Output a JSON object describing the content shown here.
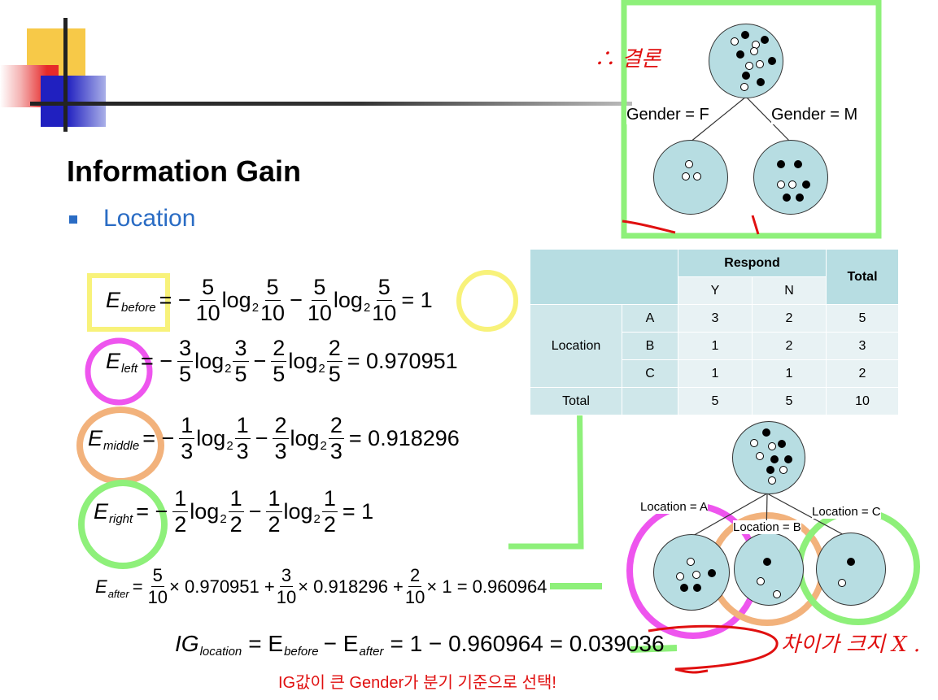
{
  "slide": {
    "title": "Information Gain",
    "bullet": "Location"
  },
  "equations": {
    "e_before": {
      "lhs": "E",
      "sub": "before",
      "a": "5",
      "b": "10",
      "c": "5",
      "d": "10",
      "e": "5",
      "f": "10",
      "g": "5",
      "h": "10",
      "result": "= 1"
    },
    "e_left": {
      "lhs": "E",
      "sub": "left",
      "a": "3",
      "b": "5",
      "c": "3",
      "d": "5",
      "e": "2",
      "f": "5",
      "g": "2",
      "h": "5",
      "result": "= 0.970951"
    },
    "e_middle": {
      "lhs": "E",
      "sub": "middle",
      "a": "1",
      "b": "3",
      "c": "1",
      "d": "3",
      "e": "2",
      "f": "3",
      "g": "2",
      "h": "3",
      "result": "= 0.918296"
    },
    "e_right": {
      "lhs": "E",
      "sub": "right",
      "a": "1",
      "b": "2",
      "c": "1",
      "d": "2",
      "e": "1",
      "f": "2",
      "g": "1",
      "h": "2",
      "result": "= 1"
    },
    "log": "log",
    "log_base": "2",
    "e_after": {
      "lhs": "E",
      "sub": "after",
      "f1n": "5",
      "f1d": "10",
      "t1": "× 0.970951 +",
      "f2n": "3",
      "f2d": "10",
      "t2": "× 0.918296 +",
      "f3n": "2",
      "f3d": "10",
      "t3": "× 1 = 0.960964"
    },
    "ig": {
      "lhs": "IG",
      "sub": "location",
      "eq": "= E",
      "sub2": "before",
      "minus": "− E",
      "sub3": "after",
      "rest": "= 1 − 0.960964 = 0.039036"
    }
  },
  "footer_note": "IG값이 큰 Gender가 분기 기준으로 선택!",
  "handwriting": {
    "top": "∴ 결론",
    "bottom": "차이가 크지 X ."
  },
  "table": {
    "header": {
      "respond": "Respond",
      "total": "Total",
      "y": "Y",
      "n": "N"
    },
    "row_label": "Location",
    "rows": [
      {
        "cat": "A",
        "y": "3",
        "n": "2",
        "total": "5"
      },
      {
        "cat": "B",
        "y": "1",
        "n": "2",
        "total": "3"
      },
      {
        "cat": "C",
        "y": "1",
        "n": "1",
        "total": "2"
      }
    ],
    "total_row": {
      "label": "Total",
      "y": "5",
      "n": "5",
      "total": "10"
    }
  },
  "gender_tree": {
    "left_label": "Gender = F",
    "right_label": "Gender = M"
  },
  "location_tree": {
    "a_label": "Location = A",
    "b_label": "Location = B",
    "c_label": "Location = C"
  },
  "annotation_colors": {
    "yellow": "#f8f27a",
    "magenta": "#ee55ee",
    "orange": "#f2b27c",
    "green": "#8ef07a",
    "red": "#e01010",
    "accent_blue": "#2a6cc4",
    "node_fill": "#b7dde2"
  }
}
